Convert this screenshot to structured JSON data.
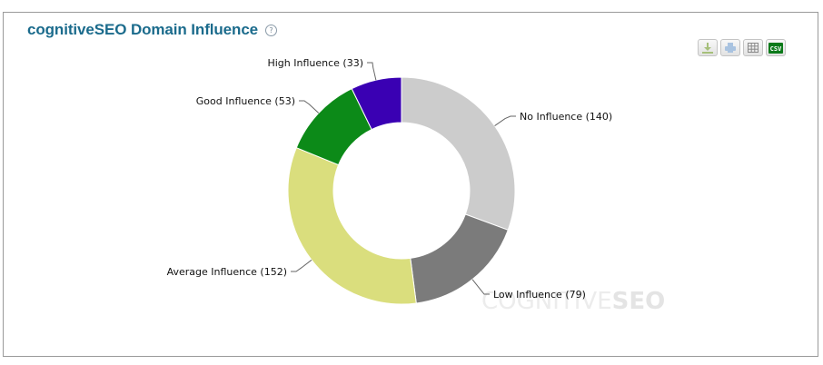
{
  "header": {
    "title": "cognitiveSEO Domain Influence",
    "help_icon": "question-circle-icon"
  },
  "toolbar": {
    "buttons": [
      {
        "name": "download",
        "icon": "download-icon"
      },
      {
        "name": "print",
        "icon": "print-icon"
      },
      {
        "name": "table",
        "icon": "grid-icon"
      },
      {
        "name": "csv",
        "icon": "csv-icon",
        "label": "CSV"
      }
    ]
  },
  "watermark": {
    "light": "COGNITIVE",
    "bold": "SEO"
  },
  "chart_data": {
    "type": "pie",
    "subtype": "donut",
    "title": "cognitiveSEO Domain Influence",
    "categories": [
      "No Influence",
      "Low Influence",
      "Average Influence",
      "Good Influence",
      "High Influence"
    ],
    "values": [
      140,
      79,
      152,
      53,
      33
    ],
    "colors": [
      "#cccccc",
      "#7b7b7b",
      "#dade7d",
      "#0c8a18",
      "#3a00b3"
    ],
    "labels": [
      "No Influence (140)",
      "Low Influence (79)",
      "Average Influence (152)",
      "Good Influence (53)",
      "High Influence (33)"
    ],
    "start_angle": "12 o'clock, clockwise",
    "legend": "none (inline data labels)"
  }
}
